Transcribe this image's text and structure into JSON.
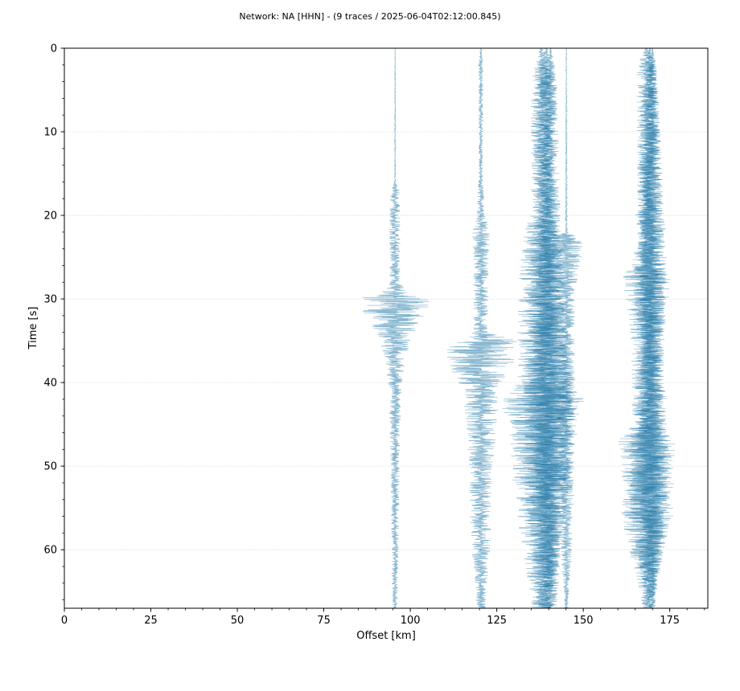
{
  "chart_data": {
    "type": "line",
    "title": "Network: NA [HHN] - (9 traces / 2025-06-04T02:12:00.845)",
    "xlabel": "Offset [km]",
    "ylabel": "Time [s]",
    "xlim": [
      0,
      186
    ],
    "ylim": [
      67,
      0
    ],
    "y_inverted": true,
    "x_ticks": [
      0,
      25,
      50,
      75,
      100,
      125,
      150,
      175
    ],
    "x_minor_step": 5,
    "y_ticks": [
      0,
      10,
      20,
      30,
      40,
      50,
      60
    ],
    "y_minor_step": 2,
    "grid": {
      "y_major": true,
      "x_major": false,
      "style": "dotted"
    },
    "legend": "none",
    "trace_color": "#1f77a6",
    "trace_opacity": 0.55,
    "series": [
      {
        "offset": 95.6,
        "envelope": [
          [
            0,
            0.1
          ],
          [
            16,
            0.2
          ],
          [
            17,
            1.2
          ],
          [
            20,
            1.6
          ],
          [
            28,
            1.5
          ],
          [
            29,
            3.0
          ],
          [
            30,
            10
          ],
          [
            32,
            9
          ],
          [
            34,
            5
          ],
          [
            37,
            3.2
          ],
          [
            40,
            2.0
          ],
          [
            45,
            1.5
          ],
          [
            55,
            1.2
          ],
          [
            66,
            0.8
          ]
        ]
      },
      {
        "offset": 120.4,
        "envelope": [
          [
            0,
            0.2
          ],
          [
            2,
            0.7
          ],
          [
            15,
            0.6
          ],
          [
            20,
            1.2
          ],
          [
            22,
            2.5
          ],
          [
            28,
            2.2
          ],
          [
            34,
            2.0
          ],
          [
            35,
            10
          ],
          [
            38,
            9
          ],
          [
            41,
            5
          ],
          [
            45,
            4.5
          ],
          [
            50,
            3.2
          ],
          [
            56,
            3.0
          ],
          [
            60,
            2.6
          ],
          [
            66,
            1.5
          ]
        ]
      },
      {
        "offset": 137.9,
        "envelope": [
          [
            0,
            0.4
          ],
          [
            3,
            3.0
          ],
          [
            20,
            3.0
          ],
          [
            22,
            5.0
          ],
          [
            26,
            6.0
          ],
          [
            30,
            6.5
          ],
          [
            40,
            7
          ],
          [
            42,
            12
          ],
          [
            45,
            9
          ],
          [
            52,
            8
          ],
          [
            58,
            6
          ],
          [
            66,
            3.0
          ]
        ]
      },
      {
        "offset": 139.3,
        "envelope": [
          [
            0,
            0.3
          ],
          [
            3,
            2.5
          ],
          [
            20,
            2.5
          ],
          [
            23,
            4.5
          ],
          [
            30,
            5.5
          ],
          [
            40,
            6
          ],
          [
            43,
            10
          ],
          [
            50,
            7
          ],
          [
            58,
            5
          ],
          [
            66,
            2.5
          ]
        ]
      },
      {
        "offset": 140.5,
        "envelope": [
          [
            0,
            0.2
          ],
          [
            3,
            1.8
          ],
          [
            22,
            3.0
          ],
          [
            30,
            4.0
          ],
          [
            42,
            7
          ],
          [
            50,
            5
          ],
          [
            66,
            2.0
          ]
        ]
      },
      {
        "offset": 145.1,
        "envelope": [
          [
            0,
            0.1
          ],
          [
            22,
            0.3
          ],
          [
            23,
            6
          ],
          [
            26,
            3.5
          ],
          [
            30,
            2.5
          ],
          [
            36,
            2.3
          ],
          [
            42,
            2.6
          ],
          [
            50,
            2.2
          ],
          [
            60,
            1.6
          ],
          [
            66,
            0.6
          ]
        ]
      },
      {
        "offset": 168.4,
        "envelope": [
          [
            0,
            0.5
          ],
          [
            2,
            3.0
          ],
          [
            26,
            2.5
          ],
          [
            27,
            7
          ],
          [
            30,
            6
          ],
          [
            35,
            4.5
          ],
          [
            45,
            4.0
          ],
          [
            47,
            8
          ],
          [
            50,
            7.5
          ],
          [
            56,
            7.5
          ],
          [
            60,
            5
          ],
          [
            64,
            3.0
          ],
          [
            66,
            1.5
          ]
        ]
      },
      {
        "offset": 169.2,
        "envelope": [
          [
            0,
            0.3
          ],
          [
            3,
            2.0
          ],
          [
            27,
            5
          ],
          [
            35,
            3.5
          ],
          [
            48,
            6
          ],
          [
            56,
            6
          ],
          [
            66,
            1.2
          ]
        ]
      },
      {
        "offset": 170.0,
        "envelope": [
          [
            0,
            0.2
          ],
          [
            3,
            1.5
          ],
          [
            27,
            4
          ],
          [
            40,
            3
          ],
          [
            50,
            5
          ],
          [
            66,
            1.0
          ]
        ]
      }
    ]
  }
}
